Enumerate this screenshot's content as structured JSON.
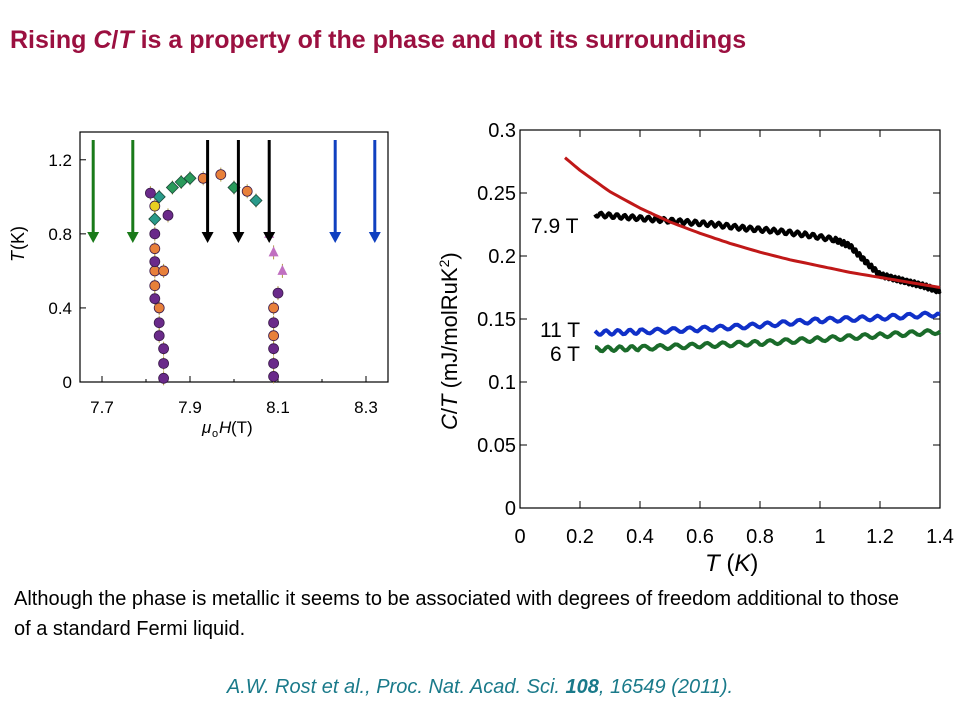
{
  "title": {
    "p1": "Rising ",
    "c": "C",
    "slash": "/",
    "t": "T",
    "p2": " is a property of the phase and not its surroundings"
  },
  "body_text": "Although the phase is metallic it seems to be associated with degrees of freedom additional to those of a standard Fermi liquid.",
  "citation": {
    "authors": "A.W. Rost et al., Proc. Nat. Acad. Sci. ",
    "volume": "108",
    "rest": ", 16549 (2011)."
  },
  "colors": {
    "title": "#9b1040",
    "citation": "#1a7a8a",
    "curve_79T": "#000000",
    "curve_11T": "#1030c8",
    "curve_6T": "#1a6b2a",
    "curve_fit": "#c01818",
    "arrow_green": "#1a7a1a",
    "arrow_black": "#000000",
    "arrow_blue": "#1040c0"
  },
  "chart_data": [
    {
      "type": "scatter",
      "ylabel_T": "T",
      "ylabel_rest": "(K)",
      "xlabel_mu": "μ",
      "xlabel_sub": "o",
      "xlabel_H": "H",
      "xlabel_unit": " (T)",
      "xlim": [
        7.65,
        8.35
      ],
      "ylim": [
        0,
        1.35
      ],
      "x_ticks": [
        7.7,
        7.9,
        8.1,
        8.3
      ],
      "x_tick_labels": [
        "7.7",
        "7.9",
        "8.1",
        "8.3"
      ],
      "y_ticks": [
        0,
        0.4,
        0.8,
        1.2
      ],
      "y_tick_labels": [
        "0",
        "0.4",
        "0.8",
        "1.2"
      ],
      "arrows": [
        {
          "x": 7.68,
          "color": "green"
        },
        {
          "x": 7.77,
          "color": "green"
        },
        {
          "x": 7.94,
          "color": "black"
        },
        {
          "x": 8.01,
          "color": "black"
        },
        {
          "x": 8.08,
          "color": "black"
        },
        {
          "x": 8.23,
          "color": "blue"
        },
        {
          "x": 8.32,
          "color": "blue"
        }
      ],
      "points": [
        {
          "x": 7.84,
          "y": 0.02,
          "m": "purple"
        },
        {
          "x": 7.84,
          "y": 0.1,
          "m": "purple"
        },
        {
          "x": 7.84,
          "y": 0.18,
          "m": "purple"
        },
        {
          "x": 7.83,
          "y": 0.25,
          "m": "purple"
        },
        {
          "x": 7.83,
          "y": 0.32,
          "m": "purple"
        },
        {
          "x": 7.83,
          "y": 0.4,
          "m": "orange"
        },
        {
          "x": 7.82,
          "y": 0.45,
          "m": "purple"
        },
        {
          "x": 7.82,
          "y": 0.52,
          "m": "orange"
        },
        {
          "x": 7.82,
          "y": 0.6,
          "m": "orange"
        },
        {
          "x": 7.82,
          "y": 0.65,
          "m": "purple"
        },
        {
          "x": 7.82,
          "y": 0.72,
          "m": "orange"
        },
        {
          "x": 7.82,
          "y": 0.8,
          "m": "purple"
        },
        {
          "x": 7.82,
          "y": 0.88,
          "m": "teal"
        },
        {
          "x": 7.82,
          "y": 0.95,
          "m": "yellow"
        },
        {
          "x": 7.83,
          "y": 1.0,
          "m": "teal"
        },
        {
          "x": 7.81,
          "y": 1.02,
          "m": "purple"
        },
        {
          "x": 7.85,
          "y": 0.9,
          "m": "purple"
        },
        {
          "x": 7.84,
          "y": 0.6,
          "m": "orange"
        },
        {
          "x": 7.86,
          "y": 1.05,
          "m": "green"
        },
        {
          "x": 7.88,
          "y": 1.08,
          "m": "green"
        },
        {
          "x": 7.9,
          "y": 1.1,
          "m": "green"
        },
        {
          "x": 7.93,
          "y": 1.1,
          "m": "orange"
        },
        {
          "x": 7.97,
          "y": 1.12,
          "m": "orange"
        },
        {
          "x": 8.0,
          "y": 1.05,
          "m": "green"
        },
        {
          "x": 8.03,
          "y": 1.03,
          "m": "orange"
        },
        {
          "x": 8.05,
          "y": 0.98,
          "m": "teal"
        },
        {
          "x": 8.08,
          "y": 0.8,
          "m": "pink"
        },
        {
          "x": 8.09,
          "y": 0.7,
          "m": "pink"
        },
        {
          "x": 8.11,
          "y": 0.6,
          "m": "pink"
        },
        {
          "x": 8.1,
          "y": 0.48,
          "m": "purple"
        },
        {
          "x": 8.09,
          "y": 0.4,
          "m": "orange"
        },
        {
          "x": 8.09,
          "y": 0.32,
          "m": "purple"
        },
        {
          "x": 8.09,
          "y": 0.25,
          "m": "orange"
        },
        {
          "x": 8.09,
          "y": 0.18,
          "m": "purple"
        },
        {
          "x": 8.09,
          "y": 0.1,
          "m": "purple"
        },
        {
          "x": 8.09,
          "y": 0.03,
          "m": "purple"
        }
      ]
    },
    {
      "type": "line",
      "xlabel_T": "T",
      "xlabel_rest": " (",
      "xlabel_K": "K",
      "xlabel_close": ")",
      "ylabel_C": "C",
      "ylabel_slash": "/",
      "ylabel_T": "T",
      "ylabel_units": " (mJ/molRuK",
      "ylabel_sup": "2",
      "ylabel_close": ")",
      "xlim": [
        0,
        1.4
      ],
      "ylim": [
        0,
        0.3
      ],
      "x_ticks": [
        0,
        0.2,
        0.4,
        0.6,
        0.8,
        1,
        1.2,
        1.4
      ],
      "x_tick_labels": [
        "0",
        "0.2",
        "0.4",
        "0.6",
        "0.8",
        "1",
        "1.2",
        "1.4"
      ],
      "y_ticks": [
        0,
        0.05,
        0.1,
        0.15,
        0.2,
        0.25,
        0.3
      ],
      "y_tick_labels": [
        "0",
        "0.05",
        "0.1",
        "0.15",
        "0.2",
        "0.25",
        "0.3"
      ],
      "series": [
        {
          "name": "7.9 T",
          "color": "#000000",
          "x": [
            0.25,
            0.35,
            0.45,
            0.55,
            0.65,
            0.75,
            0.85,
            0.95,
            1.05,
            1.1,
            1.15,
            1.2,
            1.25,
            1.3,
            1.35,
            1.4
          ],
          "y": [
            0.233,
            0.231,
            0.229,
            0.227,
            0.225,
            0.222,
            0.22,
            0.217,
            0.213,
            0.208,
            0.196,
            0.185,
            0.182,
            0.179,
            0.176,
            0.172
          ]
        },
        {
          "name": "11 T",
          "color": "#1030c8",
          "x": [
            0.25,
            0.4,
            0.6,
            0.8,
            1.0,
            1.2,
            1.4
          ],
          "y": [
            0.139,
            0.14,
            0.142,
            0.145,
            0.149,
            0.151,
            0.154
          ]
        },
        {
          "name": "6 T",
          "color": "#1a6b2a",
          "x": [
            0.25,
            0.4,
            0.6,
            0.8,
            1.0,
            1.2,
            1.4
          ],
          "y": [
            0.126,
            0.127,
            0.129,
            0.131,
            0.134,
            0.137,
            0.14
          ]
        },
        {
          "color": "#c01818",
          "x": [
            0.15,
            0.2,
            0.3,
            0.4,
            0.5,
            0.6,
            0.7,
            0.8,
            0.9,
            1.0,
            1.1,
            1.2,
            1.3,
            1.4
          ],
          "y": [
            0.278,
            0.268,
            0.251,
            0.238,
            0.227,
            0.218,
            0.21,
            0.203,
            0.197,
            0.192,
            0.187,
            0.183,
            0.179,
            0.175
          ]
        }
      ]
    }
  ]
}
